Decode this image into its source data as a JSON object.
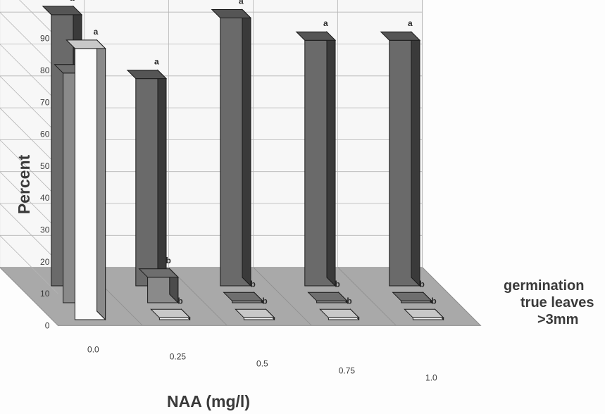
{
  "chart_data": {
    "type": "bar",
    "variant": "3d-grouped",
    "title": "",
    "xlabel": "NAA (mg/l)",
    "ylabel": "Percent",
    "ylim": [
      0,
      90
    ],
    "yticks": [
      0,
      10,
      20,
      30,
      40,
      50,
      60,
      70,
      80,
      90
    ],
    "categories": [
      "0.0",
      "0.25",
      "0.5",
      "0.75",
      "1.0"
    ],
    "series": [
      {
        "name": ">3mm",
        "values": [
          85,
          0,
          0,
          0,
          0
        ],
        "labels": [
          "a",
          "b",
          "b",
          "b",
          "b"
        ],
        "color": "#fafafa"
      },
      {
        "name": "true leaves",
        "values": [
          72,
          8,
          0,
          0,
          0
        ],
        "labels": [
          "a",
          "b",
          "b",
          "b",
          "b"
        ],
        "color": "#8a8a8a"
      },
      {
        "name": "germination",
        "values": [
          85,
          65,
          84,
          77,
          77
        ],
        "labels": [
          "a",
          "a",
          "a",
          "a",
          "a"
        ],
        "color": "#6a6a6a"
      }
    ],
    "grid": true,
    "legend": "right"
  }
}
